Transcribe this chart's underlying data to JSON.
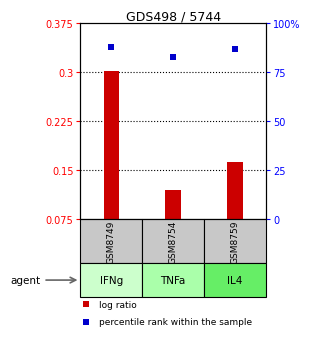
{
  "title": "GDS498 / 5744",
  "categories": [
    "IFNg",
    "TNFa",
    "IL4"
  ],
  "gsm_labels": [
    "GSM8749",
    "GSM8754",
    "GSM8759"
  ],
  "log_ratios": [
    0.302,
    0.12,
    0.162
  ],
  "percentile_ranks": [
    88,
    83,
    87
  ],
  "ylim_left": [
    0.075,
    0.375
  ],
  "yticks_left": [
    0.075,
    0.15,
    0.225,
    0.3,
    0.375
  ],
  "ytick_labels_left": [
    "0.075",
    "0.15",
    "0.225",
    "0.3",
    "0.375"
  ],
  "yticks_right_vals": [
    0.075,
    0.15,
    0.225,
    0.3,
    0.375
  ],
  "yticks_right_labels": [
    "0",
    "25",
    "50",
    "75",
    "100%"
  ],
  "bar_color": "#cc0000",
  "square_color": "#0000cc",
  "agent_bg_colors": [
    "#ccffcc",
    "#aaffaa",
    "#66ee66"
  ],
  "gsm_bg_color": "#c8c8c8",
  "bar_width": 0.25,
  "agent_label": "agent"
}
